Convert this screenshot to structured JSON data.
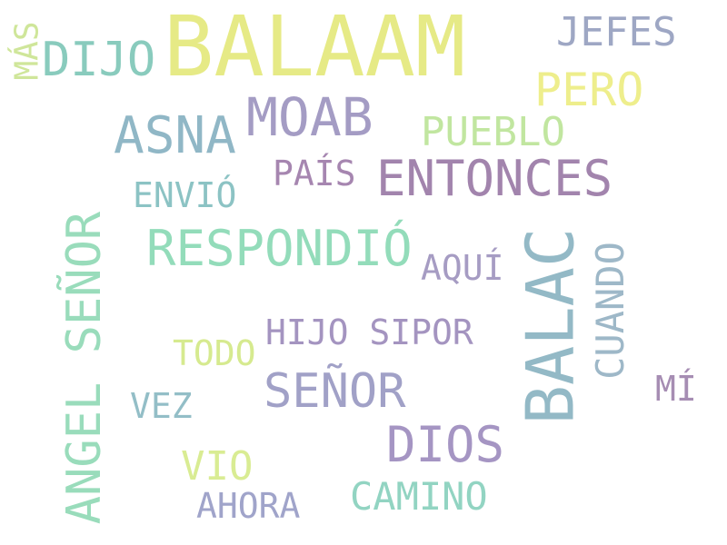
{
  "words": [
    {
      "text": "BALAAM",
      "color": "#e6ea86"
    },
    {
      "text": "JEFES",
      "color": "#9ea7c4"
    },
    {
      "text": "MÁS",
      "color": "#cfe69a"
    },
    {
      "text": "DIJO",
      "color": "#89cbbd"
    },
    {
      "text": "PERO",
      "color": "#eeee8c"
    },
    {
      "text": "ASNA",
      "color": "#90b7c6"
    },
    {
      "text": "MOAB",
      "color": "#a49cc4"
    },
    {
      "text": "PUEBLO",
      "color": "#c1e6a0"
    },
    {
      "text": "PAÍS",
      "color": "#a686b0"
    },
    {
      "text": "ENTONCES",
      "color": "#a284ad"
    },
    {
      "text": "ENVIÓ",
      "color": "#8cc3c4"
    },
    {
      "text": "ANGEL SEÑOR",
      "color": "#99dcbb"
    },
    {
      "text": "RESPONDIÓ",
      "color": "#93dcba"
    },
    {
      "text": "AQUÍ",
      "color": "#a69cc3"
    },
    {
      "text": "BALAC",
      "color": "#93b9c6"
    },
    {
      "text": "CUANDO",
      "color": "#9eb8c8"
    },
    {
      "text": "HIJO SIPOR",
      "color": "#a494c0"
    },
    {
      "text": "TODO",
      "color": "#d6ea8f"
    },
    {
      "text": "SEÑOR",
      "color": "#a1a1c7"
    },
    {
      "text": "MÍ",
      "color": "#a68db3"
    },
    {
      "text": "VEZ",
      "color": "#93bec7"
    },
    {
      "text": "DIOS",
      "color": "#a595c3"
    },
    {
      "text": "VIO",
      "color": "#d9ec93"
    },
    {
      "text": "CAMINO",
      "color": "#92d4c2"
    },
    {
      "text": "AHORA",
      "color": "#a0a4ca"
    }
  ]
}
